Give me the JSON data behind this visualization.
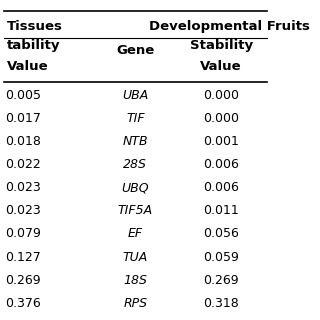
{
  "col1_header_line1": "Tissues",
  "col1_header_line2": "tability",
  "col1_header_line3": "Value",
  "col2_header": "Gene",
  "col3_header_line1": "Developmental Fruits",
  "col3_header_line2": "Stability",
  "col3_header_line3": "Value",
  "genes": [
    "UBA",
    "TIF",
    "NTB",
    "28S",
    "UBQ",
    "TIF5A",
    "EF",
    "TUA",
    "18S",
    "RPS"
  ],
  "tissues_values": [
    "0.005",
    "0.017",
    "0.018",
    "0.022",
    "0.023",
    "0.023",
    "0.079",
    "0.127",
    "0.269",
    "0.376"
  ],
  "dev_fruits_values": [
    "0.000",
    "0.000",
    "0.001",
    "0.006",
    "0.006",
    "0.011",
    "0.056",
    "0.059",
    "0.269",
    "0.318"
  ],
  "background_color": "#ffffff",
  "text_color": "#000000",
  "font_size_header": 9.5,
  "font_size_data": 9.0,
  "figsize": [
    3.2,
    3.2
  ],
  "dpi": 100
}
